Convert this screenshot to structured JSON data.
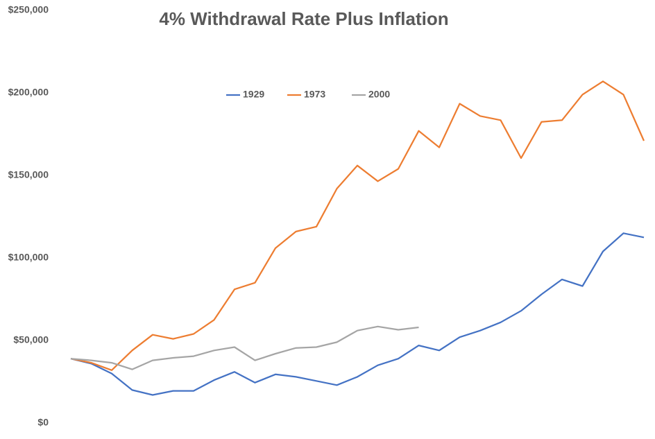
{
  "chart_data": {
    "type": "line",
    "title": "4% Withdrawal Rate Plus Inflation",
    "categories": [
      null,
      null,
      null,
      null,
      null,
      null,
      null,
      null,
      null,
      null,
      null,
      null,
      null,
      null,
      null,
      null,
      null,
      null,
      null,
      null,
      null,
      null,
      null,
      null,
      null,
      null,
      null,
      null,
      null
    ],
    "series": [
      {
        "name": "1929",
        "color": "#4472c4",
        "values": [
          39000,
          36000,
          30000,
          20000,
          17000,
          19500,
          19500,
          26000,
          31000,
          24500,
          29500,
          28000,
          25500,
          23000,
          28000,
          35000,
          39000,
          47000,
          44000,
          52000,
          56000,
          61000,
          68000,
          78000,
          87000,
          83000,
          104000,
          115000,
          112500
        ]
      },
      {
        "name": "1973",
        "color": "#ed7d31",
        "values": [
          39000,
          36500,
          32000,
          44000,
          53500,
          51000,
          54000,
          62500,
          81000,
          85000,
          106000,
          116000,
          119000,
          142000,
          156000,
          146500,
          154000,
          177000,
          167000,
          193500,
          186000,
          183500,
          160500,
          182500,
          183500,
          199000,
          207000,
          199000,
          171000
        ]
      },
      {
        "name": "2000",
        "color": "#a5a5a5",
        "values": [
          39000,
          38000,
          36500,
          32500,
          38000,
          39500,
          40500,
          44000,
          46000,
          38000,
          42000,
          45500,
          46000,
          49000,
          56000,
          58500,
          56500,
          58000,
          null,
          null,
          null,
          null,
          null,
          null,
          null,
          null,
          null,
          null,
          null
        ]
      }
    ],
    "ylim": [
      0,
      250000
    ],
    "yticks": [
      {
        "value": 0,
        "label": "$0"
      },
      {
        "value": 50000,
        "label": "$50,000"
      },
      {
        "value": 100000,
        "label": "$100,000"
      },
      {
        "value": 150000,
        "label": "$150,000"
      },
      {
        "value": 200000,
        "label": "$200,000"
      },
      {
        "value": 250000,
        "label": "$250,000"
      }
    ],
    "grid": false,
    "legend": "top"
  }
}
